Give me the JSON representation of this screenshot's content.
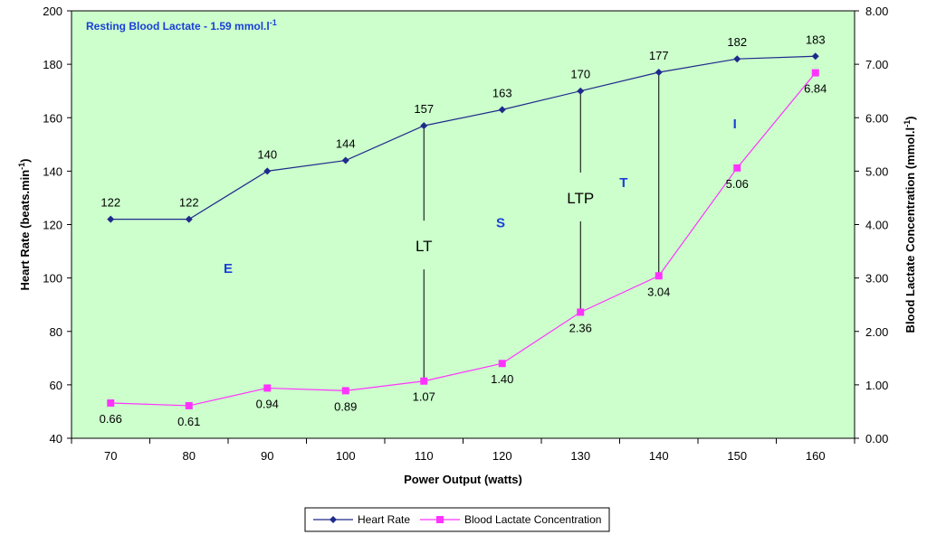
{
  "chart_data": {
    "type": "line",
    "x": [
      70,
      80,
      90,
      100,
      110,
      120,
      130,
      140,
      150,
      160
    ],
    "xlabel": "Power Output (watts)",
    "ylabel": "Heart Rate (beats.min",
    "ylabel_sup": "-1",
    "ylabel_end": ")",
    "y2label": "Blood Lactate Concentration (mmol.l",
    "y2label_sup": "-1",
    "y2label_end": ")",
    "ylim": [
      40,
      200
    ],
    "y2lim": [
      0,
      8
    ],
    "yticks": [
      "40",
      "60",
      "80",
      "100",
      "120",
      "140",
      "160",
      "180",
      "200"
    ],
    "y2ticks": [
      "0.00",
      "1.00",
      "2.00",
      "3.00",
      "4.00",
      "5.00",
      "6.00",
      "7.00",
      "8.00"
    ],
    "xticks": [
      "70",
      "80",
      "90",
      "100",
      "110",
      "120",
      "130",
      "140",
      "150",
      "160"
    ],
    "series": [
      {
        "name": "Heart Rate",
        "axis": "left",
        "color": "#1f2a8c",
        "marker": "diamond",
        "values": [
          122,
          122,
          140,
          144,
          157,
          163,
          170,
          177,
          182,
          183
        ],
        "labels": [
          "122",
          "122",
          "140",
          "144",
          "157",
          "163",
          "170",
          "177",
          "182",
          "183"
        ]
      },
      {
        "name": "Blood Lactate Concentration",
        "axis": "right",
        "color": "#ff33ff",
        "marker": "square",
        "values": [
          0.66,
          0.61,
          0.94,
          0.89,
          1.07,
          1.4,
          2.36,
          3.04,
          5.06,
          6.84
        ],
        "labels": [
          "0.66",
          "0.61",
          "0.94",
          "0.89",
          "1.07",
          "1.40",
          "2.36",
          "3.04",
          "5.06",
          "6.84"
        ]
      }
    ],
    "note": {
      "text": "Resting Blood Lactate - 1.59 mmol.l",
      "sup": "-1"
    },
    "annotations": [
      {
        "text": "E",
        "x": 85,
        "y": 104,
        "style": "blue"
      },
      {
        "text": "S",
        "x": 119.8,
        "y": 121,
        "style": "blue"
      },
      {
        "text": "T",
        "x": 135.5,
        "y": 136,
        "style": "blue"
      },
      {
        "text": "I",
        "x": 149.7,
        "y": 158,
        "style": "blue"
      },
      {
        "text": "LT",
        "x": 110,
        "y": 112,
        "style": "big"
      },
      {
        "text": "LTP",
        "x": 130,
        "y": 130,
        "style": "big"
      }
    ],
    "threshold_lines": [
      {
        "x": 110,
        "hr": 157,
        "bl": 1.07,
        "gap": "LT"
      },
      {
        "x": 130,
        "hr": 170,
        "bl": 2.36,
        "gap": "LTP"
      },
      {
        "x": 140,
        "hr": 177,
        "bl": 3.04,
        "gap": null
      }
    ],
    "legend": [
      "Heart Rate",
      "Blood Lactate Concentration"
    ],
    "legend_position": "bottom-center",
    "grid": false,
    "plot_background": "#ccffcc"
  }
}
